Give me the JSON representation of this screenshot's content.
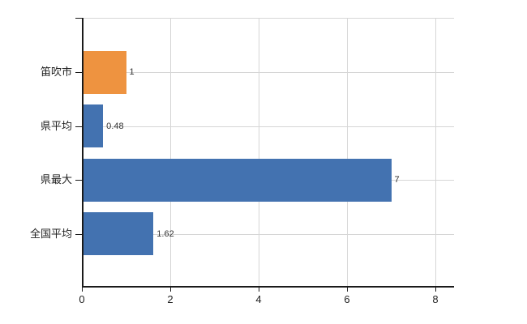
{
  "chart_data": {
    "type": "bar",
    "orientation": "horizontal",
    "title": "",
    "xlabel": "",
    "ylabel": "",
    "legend": "none",
    "grid": "both",
    "categories": [
      "笛吹市",
      "県平均",
      "県最大",
      "全国平均"
    ],
    "values": [
      1,
      0.48,
      7,
      1.62
    ],
    "value_labels": [
      "1",
      "0.48",
      "7",
      "1.62"
    ],
    "bar_colors": [
      "#ee9340",
      "#4372b0",
      "#4372b0",
      "#4372b0"
    ],
    "x_ticks": [
      "0",
      "2",
      "4",
      "6",
      "8"
    ],
    "x_tick_values": [
      0,
      2,
      4,
      6,
      8
    ],
    "xlim": [
      0,
      8.42
    ],
    "colors": {
      "grid": "#d6d6d6",
      "axis": "#1a1a1a",
      "value_label": "#333333",
      "category_label": "#222222",
      "background": "#ffffff"
    }
  }
}
